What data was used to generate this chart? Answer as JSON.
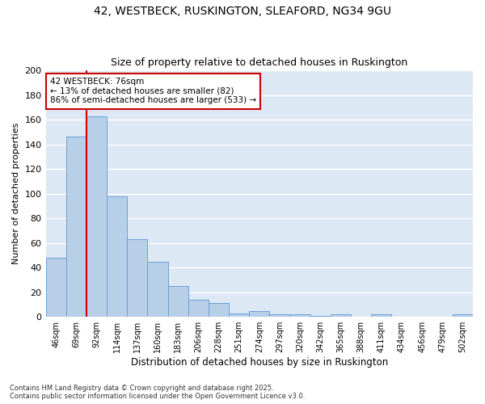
{
  "title1": "42, WESTBECK, RUSKINGTON, SLEAFORD, NG34 9GU",
  "title2": "Size of property relative to detached houses in Ruskington",
  "xlabel": "Distribution of detached houses by size in Ruskington",
  "ylabel": "Number of detached properties",
  "categories": [
    "46sqm",
    "69sqm",
    "92sqm",
    "114sqm",
    "137sqm",
    "160sqm",
    "183sqm",
    "206sqm",
    "228sqm",
    "251sqm",
    "274sqm",
    "297sqm",
    "320sqm",
    "342sqm",
    "365sqm",
    "388sqm",
    "411sqm",
    "434sqm",
    "456sqm",
    "479sqm",
    "502sqm"
  ],
  "bar_heights": [
    48,
    146,
    163,
    98,
    63,
    45,
    25,
    14,
    11,
    3,
    5,
    2,
    2,
    1,
    2,
    0,
    2,
    0,
    0,
    0,
    2
  ],
  "bar_color": "#b8cfe8",
  "bar_edge_color": "#6a9fd8",
  "vline_x": 1.5,
  "vline_color": "#cc0000",
  "annotation_text": "42 WESTBECK: 76sqm\n← 13% of detached houses are smaller (82)\n86% of semi-detached houses are larger (533) →",
  "annotation_box_color": "#cc0000",
  "ylim": [
    0,
    200
  ],
  "yticks": [
    0,
    20,
    40,
    60,
    80,
    100,
    120,
    140,
    160,
    180,
    200
  ],
  "bg_color": "#dde8f5",
  "grid_color": "#ffffff",
  "footnote": "Contains HM Land Registry data © Crown copyright and database right 2025.\nContains public sector information licensed under the Open Government Licence v3.0.",
  "title_fontsize": 10,
  "subtitle_fontsize": 9
}
